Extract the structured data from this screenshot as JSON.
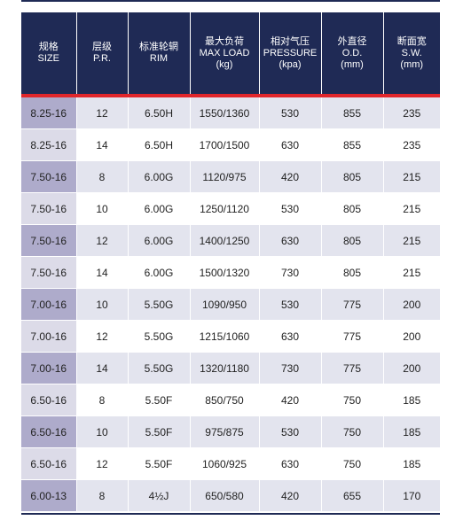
{
  "headers": [
    {
      "cn": "规格",
      "en": "SIZE",
      "unit": ""
    },
    {
      "cn": "层级",
      "en": "P.R.",
      "unit": ""
    },
    {
      "cn": "标准轮辋",
      "en": "RIM",
      "unit": ""
    },
    {
      "cn": "最大负荷",
      "en": "MAX LOAD",
      "unit": "(kg)"
    },
    {
      "cn": "相对气压",
      "en": "PRESSURE",
      "unit": "(kpa)"
    },
    {
      "cn": "外直径",
      "en": "O.D.",
      "unit": "(mm)"
    },
    {
      "cn": "断面宽",
      "en": "S.W.",
      "unit": "(mm)"
    }
  ],
  "rows": [
    [
      "8.25-16",
      "12",
      "6.50H",
      "1550/1360",
      "530",
      "855",
      "235"
    ],
    [
      "8.25-16",
      "14",
      "6.50H",
      "1700/1500",
      "630",
      "855",
      "235"
    ],
    [
      "7.50-16",
      "8",
      "6.00G",
      "1120/975",
      "420",
      "805",
      "215"
    ],
    [
      "7.50-16",
      "10",
      "6.00G",
      "1250/1120",
      "530",
      "805",
      "215"
    ],
    [
      "7.50-16",
      "12",
      "6.00G",
      "1400/1250",
      "630",
      "805",
      "215"
    ],
    [
      "7.50-16",
      "14",
      "6.00G",
      "1500/1320",
      "730",
      "805",
      "215"
    ],
    [
      "7.00-16",
      "10",
      "5.50G",
      "1090/950",
      "530",
      "775",
      "200"
    ],
    [
      "7.00-16",
      "12",
      "5.50G",
      "1215/1060",
      "630",
      "775",
      "200"
    ],
    [
      "7.00-16",
      "14",
      "5.50G",
      "1320/1180",
      "730",
      "775",
      "200"
    ],
    [
      "6.50-16",
      "8",
      "5.50F",
      "850/750",
      "420",
      "750",
      "185"
    ],
    [
      "6.50-16",
      "10",
      "5.50F",
      "975/875",
      "530",
      "750",
      "185"
    ],
    [
      "6.50-16",
      "12",
      "5.50F",
      "1060/925",
      "630",
      "750",
      "185"
    ],
    [
      "6.00-13",
      "8",
      "4½J",
      "650/580",
      "420",
      "655",
      "170"
    ]
  ],
  "colors": {
    "header_bg": "#1f2a55",
    "header_rule": "#e1262b",
    "size_cell_dark": "#aeabcb",
    "size_cell_light": "#dcdbe8",
    "row_odd": "#e3e4ee",
    "row_even": "#ffffff"
  }
}
